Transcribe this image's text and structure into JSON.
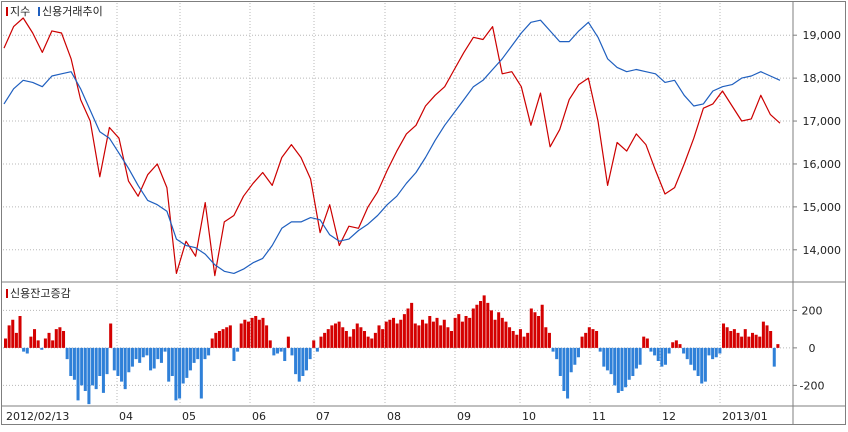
{
  "chart_data": {
    "type": "line",
    "upper_panel": {
      "legend": [
        {
          "label": "지수",
          "color": "#cc0000"
        },
        {
          "label": "신용거래추이",
          "color": "#1f5fbf"
        }
      ],
      "y_ticks": [
        "19,000",
        "18,000",
        "17,000",
        "16,000",
        "15,000",
        "14,000"
      ],
      "y_tick_values": [
        19000,
        18000,
        17000,
        16000,
        15000,
        14000
      ],
      "ylim": [
        13250,
        19750
      ],
      "series": [
        {
          "name": "지수",
          "color": "#cc0000",
          "values": [
            18700,
            19200,
            19400,
            19050,
            18600,
            19100,
            19050,
            18450,
            17500,
            17000,
            15700,
            16850,
            16600,
            15600,
            15250,
            15750,
            16000,
            15450,
            13450,
            14200,
            13850,
            15100,
            13400,
            14650,
            14800,
            15250,
            15550,
            15800,
            15500,
            16150,
            16450,
            16150,
            15650,
            14400,
            15050,
            14100,
            14550,
            14500,
            15000,
            15350,
            15850,
            16300,
            16700,
            16900,
            17350,
            17600,
            17800,
            18200,
            18600,
            18950,
            18900,
            19200,
            18100,
            18150,
            17800,
            16900,
            17650,
            16400,
            16800,
            17500,
            17850,
            18000,
            17000,
            15500,
            16500,
            16300,
            16700,
            16450,
            15850,
            15300,
            15450,
            16000,
            16600,
            17300,
            17400,
            17700,
            17350,
            17000,
            17050,
            17600,
            17150,
            16950
          ]
        },
        {
          "name": "신용거래추이",
          "color": "#1f5fbf",
          "values": [
            17400,
            17750,
            17950,
            17900,
            17800,
            18050,
            18100,
            18150,
            17750,
            17250,
            16750,
            16600,
            16250,
            15900,
            15500,
            15150,
            15050,
            14900,
            14250,
            14100,
            14050,
            13900,
            13650,
            13500,
            13450,
            13550,
            13700,
            13800,
            14100,
            14500,
            14650,
            14650,
            14750,
            14700,
            14350,
            14200,
            14250,
            14450,
            14600,
            14800,
            15050,
            15250,
            15550,
            15800,
            16150,
            16550,
            16900,
            17200,
            17500,
            17800,
            17950,
            18200,
            18450,
            18750,
            19050,
            19300,
            19350,
            19100,
            18850,
            18850,
            19100,
            19300,
            18950,
            18450,
            18250,
            18150,
            18200,
            18150,
            18100,
            17900,
            17950,
            17600,
            17350,
            17400,
            17700,
            17800,
            17850,
            18000,
            18050,
            18150,
            18050,
            17950
          ]
        }
      ]
    },
    "lower_panel": {
      "legend": [
        {
          "label": "신용잔고증감",
          "color": "#cc0000"
        }
      ],
      "y_ticks": [
        "200",
        "0",
        "-200"
      ],
      "y_tick_values": [
        200,
        0,
        -200
      ],
      "ylim": [
        -310,
        330
      ],
      "type": "bar",
      "positive_color": "#d40000",
      "negative_color": "#2f80d8",
      "values": [
        50,
        120,
        150,
        80,
        170,
        -20,
        -30,
        60,
        100,
        40,
        -10,
        50,
        80,
        40,
        100,
        110,
        90,
        -60,
        -150,
        -170,
        -280,
        -200,
        -230,
        -300,
        -200,
        -220,
        -150,
        -240,
        -140,
        130,
        -120,
        -150,
        -180,
        -220,
        -130,
        -100,
        -60,
        -80,
        -50,
        -40,
        -120,
        -110,
        -60,
        -80,
        -20,
        -180,
        -150,
        -280,
        -270,
        -190,
        -160,
        -120,
        -80,
        -60,
        -270,
        -60,
        -40,
        50,
        80,
        90,
        100,
        110,
        120,
        -70,
        -20,
        130,
        150,
        140,
        160,
        170,
        150,
        160,
        120,
        40,
        -40,
        -30,
        -20,
        -70,
        60,
        -40,
        -140,
        -180,
        -150,
        -120,
        -60,
        40,
        -20,
        60,
        80,
        100,
        120,
        130,
        140,
        110,
        90,
        60,
        100,
        130,
        110,
        90,
        60,
        50,
        80,
        120,
        100,
        140,
        150,
        160,
        130,
        150,
        180,
        210,
        240,
        130,
        120,
        150,
        130,
        170,
        140,
        160,
        120,
        150,
        110,
        90,
        160,
        180,
        140,
        170,
        160,
        210,
        230,
        250,
        280,
        240,
        200,
        150,
        190,
        160,
        140,
        110,
        90,
        70,
        100,
        60,
        80,
        210,
        190,
        170,
        230,
        110,
        80,
        -20,
        -60,
        -150,
        -230,
        -270,
        -130,
        -90,
        -50,
        60,
        80,
        110,
        100,
        90,
        -20,
        -100,
        -120,
        -140,
        -200,
        -240,
        -230,
        -210,
        -170,
        -150,
        -110,
        -90,
        60,
        50,
        -20,
        -40,
        -70,
        -100,
        -90,
        -30,
        30,
        40,
        20,
        -30,
        -60,
        -90,
        -120,
        -150,
        -190,
        -180,
        -40,
        -60,
        -50,
        -30,
        130,
        110,
        90,
        100,
        80,
        60,
        100,
        60,
        80,
        70,
        60,
        140,
        120,
        90,
        -100,
        20
      ]
    },
    "x_tick_labels": [
      "2012/02/13",
      "04",
      "05",
      "06",
      "07",
      "08",
      "09",
      "10",
      "11",
      "12",
      "2013/01"
    ],
    "grid": true
  }
}
